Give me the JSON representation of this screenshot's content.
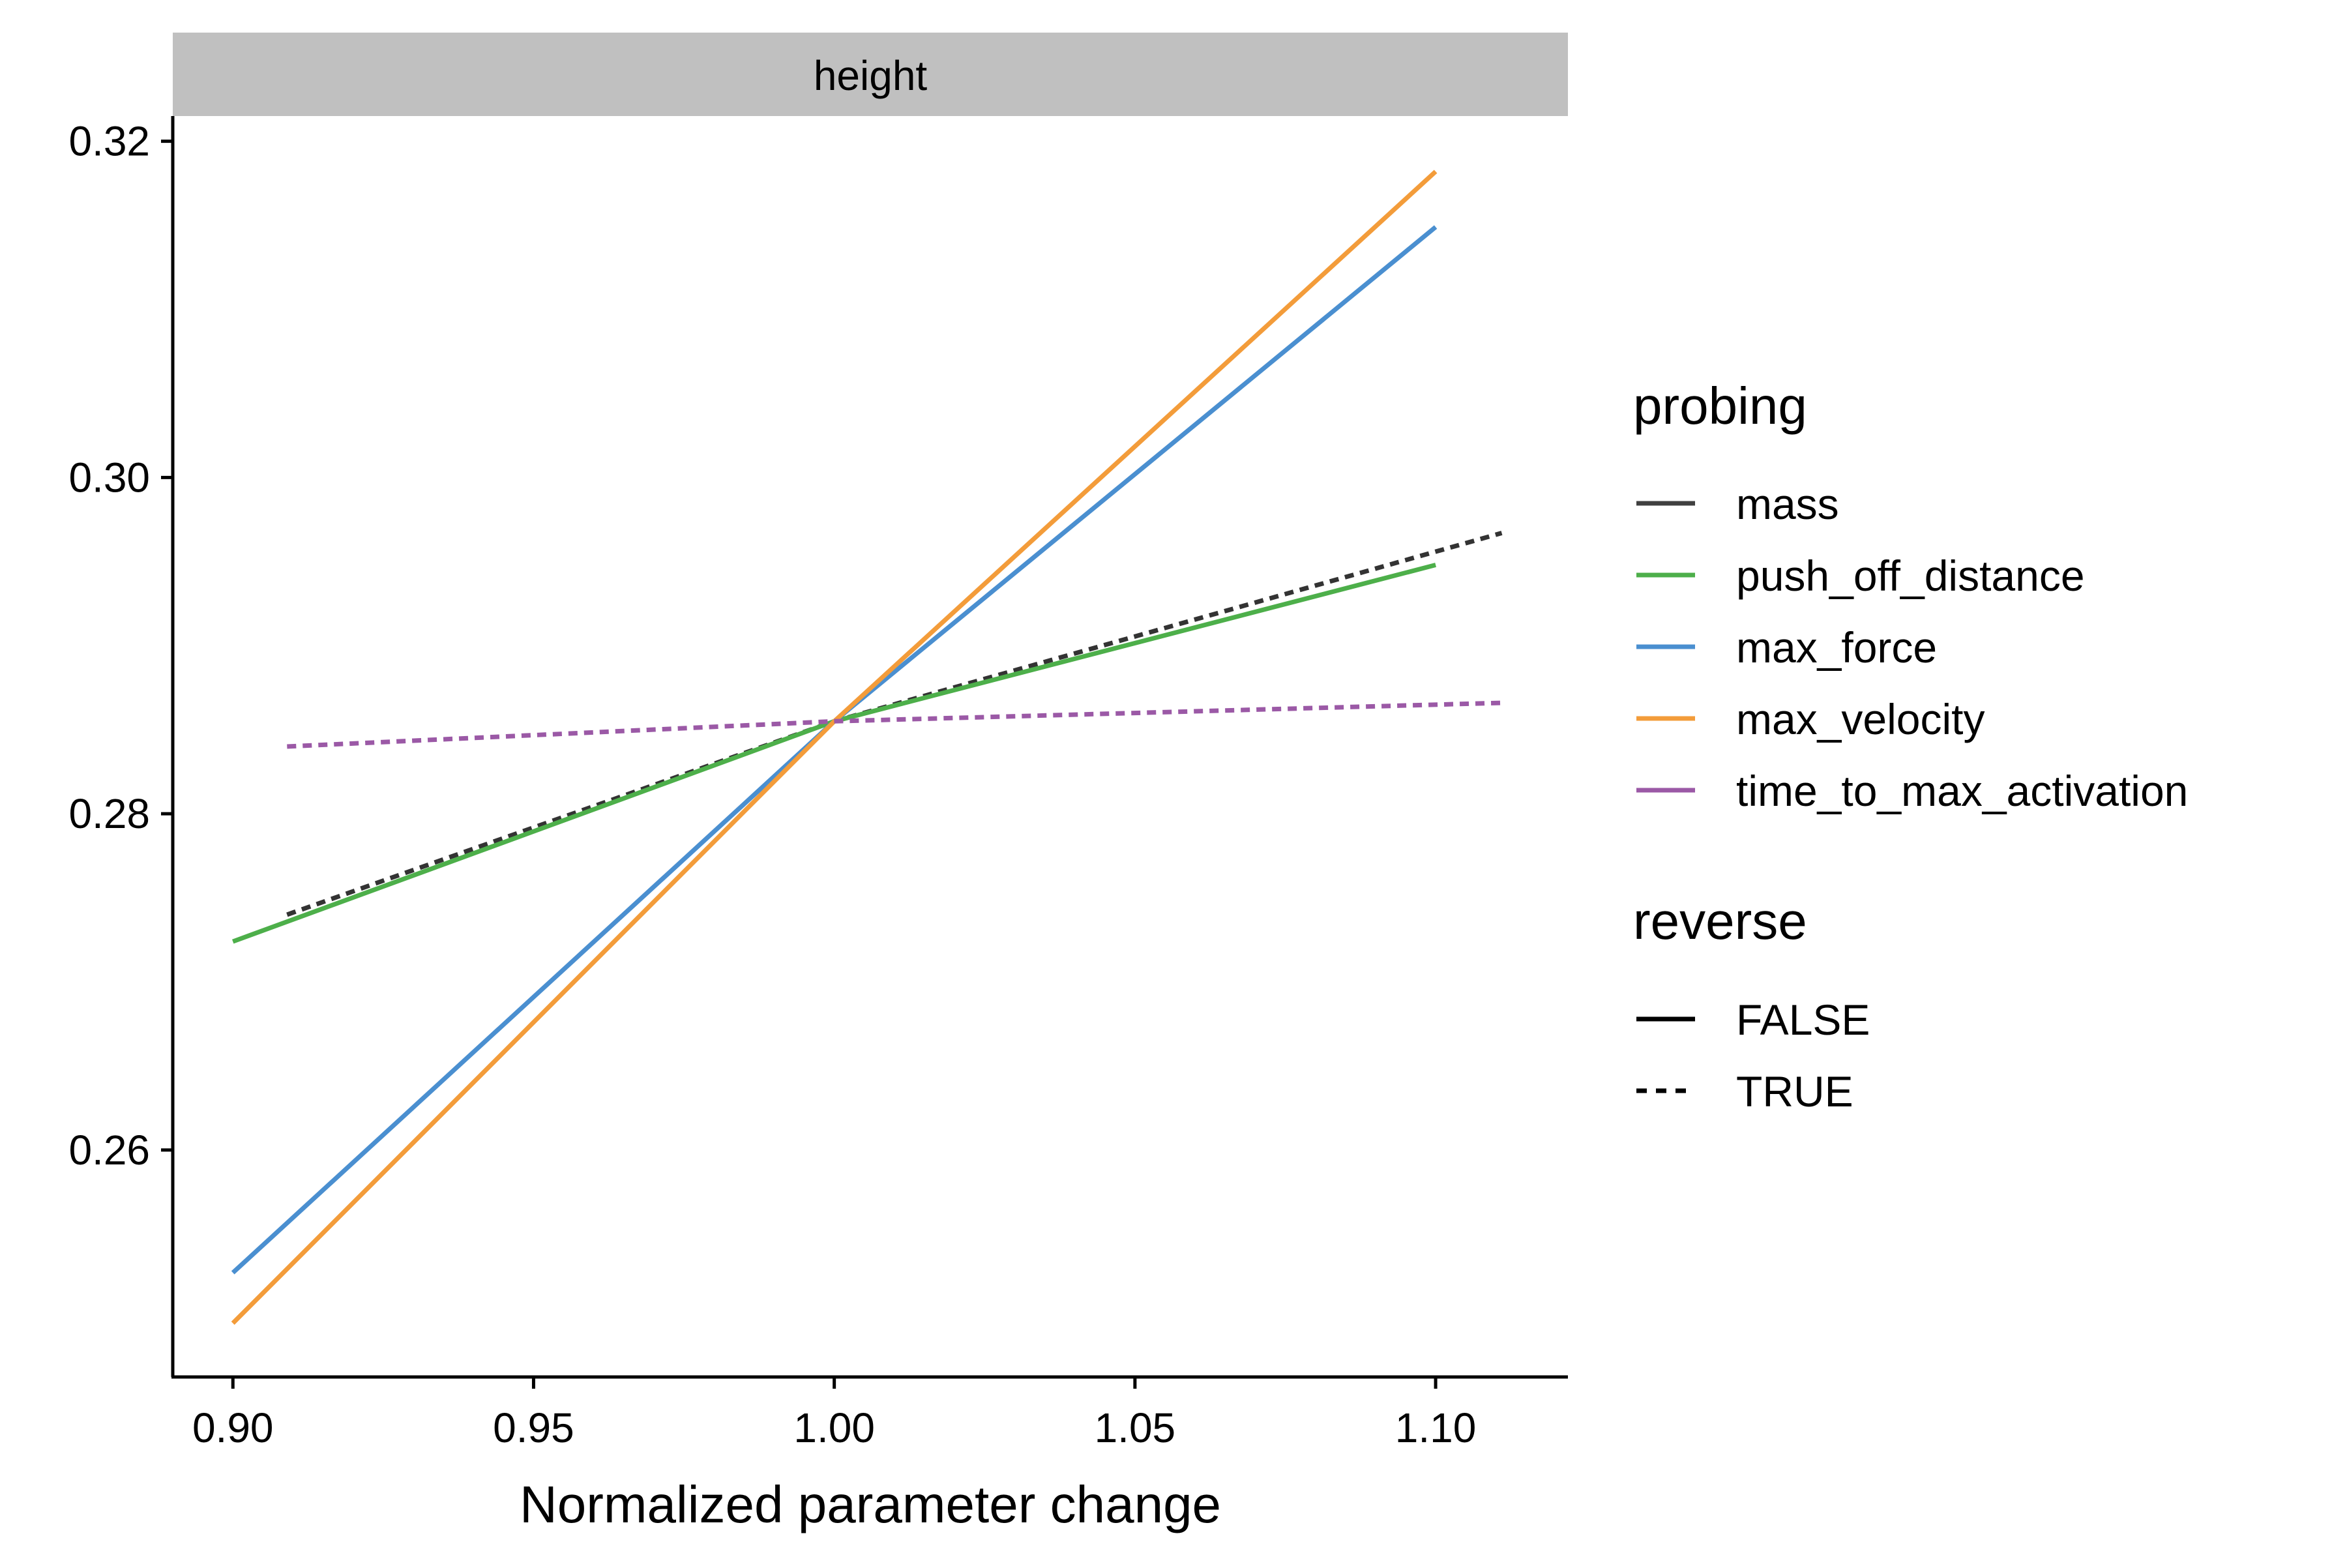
{
  "chart_data": {
    "type": "line",
    "title": "",
    "facet": "height",
    "xlabel": "Normalized parameter change",
    "ylabel": "",
    "xlim": [
      0.89,
      1.122
    ],
    "ylim": [
      0.2465,
      0.3215
    ],
    "xticks": [
      0.9,
      0.95,
      1.0,
      1.05,
      1.1
    ],
    "xtick_labels": [
      "0.90",
      "0.95",
      "1.00",
      "1.05",
      "1.10"
    ],
    "yticks": [
      0.26,
      0.28,
      0.3,
      0.32
    ],
    "ytick_labels": [
      "0.26",
      "0.28",
      "0.30",
      "0.32"
    ],
    "grid": false,
    "legend_position": "right",
    "series": [
      {
        "probing": "mass",
        "reverse": "TRUE",
        "color": "#333333",
        "dash": "dotted",
        "x": [
          0.909,
          1.0,
          1.111
        ],
        "y": [
          0.274,
          0.2855,
          0.2967
        ]
      },
      {
        "probing": "push_off_distance",
        "reverse": "FALSE",
        "color": "#4DAF4A",
        "dash": "solid",
        "x": [
          0.9,
          1.0,
          1.1
        ],
        "y": [
          0.2724,
          0.2855,
          0.2948
        ]
      },
      {
        "probing": "max_force",
        "reverse": "FALSE",
        "color": "#4A8FD0",
        "dash": "solid",
        "x": [
          0.9,
          1.0,
          1.1
        ],
        "y": [
          0.2527,
          0.2855,
          0.3149
        ]
      },
      {
        "probing": "max_velocity",
        "reverse": "FALSE",
        "color": "#F39C3A",
        "dash": "solid",
        "x": [
          0.9,
          1.0,
          1.1
        ],
        "y": [
          0.2497,
          0.2855,
          0.3182
        ]
      },
      {
        "probing": "time_to_max_activation",
        "reverse": "TRUE",
        "color": "#9B59A6",
        "dash": "dotted",
        "x": [
          0.909,
          1.0,
          1.111
        ],
        "y": [
          0.284,
          0.2855,
          0.2866
        ]
      }
    ],
    "legend": {
      "probing": {
        "title": "probing",
        "entries": [
          {
            "label": "mass",
            "color": "#404040"
          },
          {
            "label": "push_off_distance",
            "color": "#4DAF4A"
          },
          {
            "label": "max_force",
            "color": "#4A8FD0"
          },
          {
            "label": "max_velocity",
            "color": "#F39C3A"
          },
          {
            "label": "time_to_max_activation",
            "color": "#9B59A6"
          }
        ]
      },
      "reverse": {
        "title": "reverse",
        "entries": [
          {
            "label": "FALSE",
            "dash": "solid"
          },
          {
            "label": "TRUE",
            "dash": "dotted"
          }
        ]
      }
    },
    "colors": {
      "strip_background": "#C0C0C0",
      "axis": "#000000"
    }
  }
}
